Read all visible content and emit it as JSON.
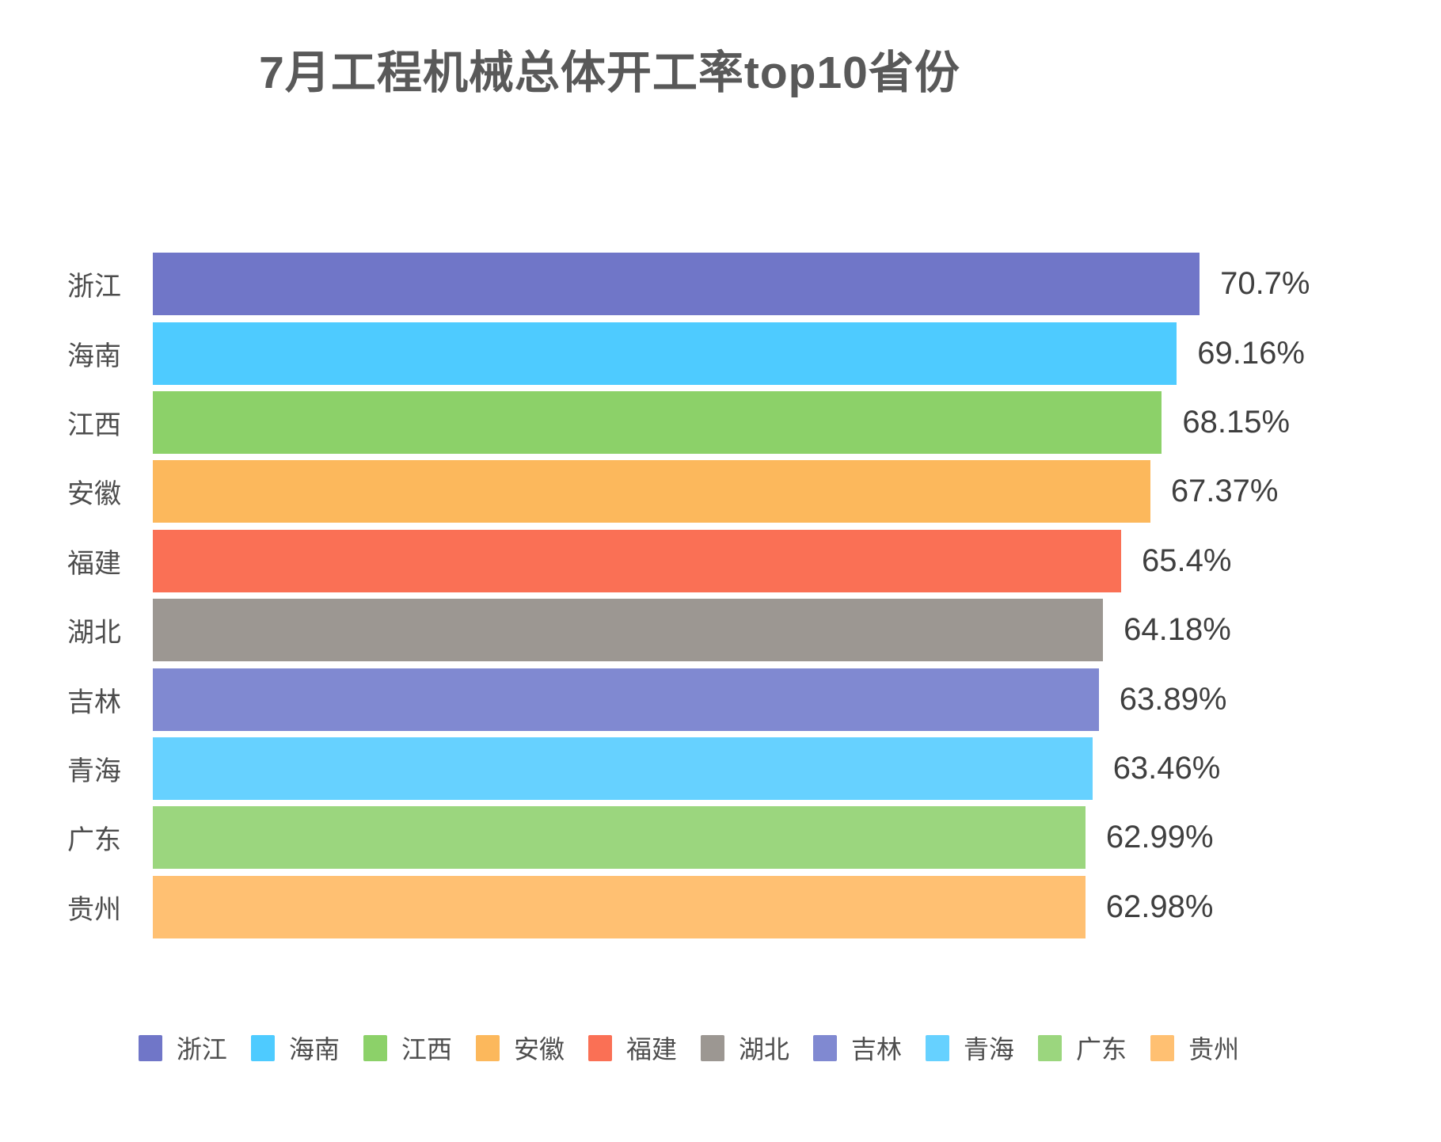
{
  "title": "7月工程机械总体开工率top10省份",
  "chart_data": {
    "type": "bar",
    "orientation": "horizontal",
    "title": "7月工程机械总体开工率top10省份",
    "categories": [
      "浙江",
      "海南",
      "江西",
      "安徽",
      "福建",
      "湖北",
      "吉林",
      "青海",
      "广东",
      "贵州"
    ],
    "values": [
      70.7,
      69.16,
      68.15,
      67.37,
      65.4,
      64.18,
      63.89,
      63.46,
      62.99,
      62.98
    ],
    "value_labels": [
      "70.7%",
      "69.16%",
      "68.15%",
      "67.37%",
      "65.4%",
      "64.18%",
      "63.89%",
      "63.46%",
      "62.99%",
      "62.98%"
    ],
    "unit": "%",
    "xlim": [
      0,
      75
    ],
    "grid": false,
    "legend_position": "bottom",
    "colors": [
      "#7076c8",
      "#4ecbff",
      "#8cd169",
      "#fcb85c",
      "#fa7055",
      "#9c9792",
      "#8089d1",
      "#66d1ff",
      "#9bd67e",
      "#ffc072"
    ]
  },
  "legend": {
    "items": [
      {
        "label": "浙江",
        "color": "#7076c8"
      },
      {
        "label": "海南",
        "color": "#4ecbff"
      },
      {
        "label": "江西",
        "color": "#8cd169"
      },
      {
        "label": "安徽",
        "color": "#fcb85c"
      },
      {
        "label": "福建",
        "color": "#fa7055"
      },
      {
        "label": "湖北",
        "color": "#9c9792"
      },
      {
        "label": "吉林",
        "color": "#8089d1"
      },
      {
        "label": "青海",
        "color": "#66d1ff"
      },
      {
        "label": "广东",
        "color": "#9bd67e"
      },
      {
        "label": "贵州",
        "color": "#ffc072"
      }
    ]
  }
}
